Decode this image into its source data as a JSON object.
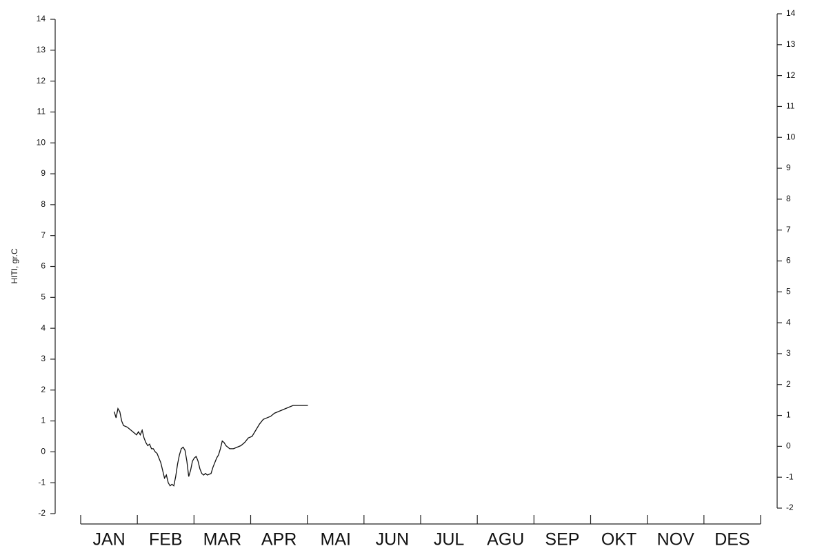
{
  "chart_data": {
    "type": "line",
    "y_label": "HITI, gr.C",
    "categories": [
      "JAN",
      "FEB",
      "MAR",
      "APR",
      "MAI",
      "JUN",
      "JUL",
      "AGU",
      "SEP",
      "OKT",
      "NOV",
      "DES"
    ],
    "xlim": [
      0,
      365
    ],
    "x": [
      18,
      19,
      20,
      21,
      22,
      23,
      25,
      27,
      29,
      30,
      31,
      32,
      33,
      34,
      35,
      36,
      37,
      38,
      39,
      40,
      41,
      42,
      43,
      44,
      45,
      46,
      47,
      48,
      49,
      50,
      51,
      52,
      53,
      54,
      55,
      56,
      57,
      58,
      59,
      60,
      61,
      62,
      63,
      64,
      65,
      66,
      67,
      68,
      70,
      71,
      72,
      73,
      74,
      75,
      76,
      77,
      78,
      79,
      80,
      82,
      84,
      86,
      88,
      90,
      92,
      94,
      96,
      98,
      100,
      102,
      104,
      106,
      108,
      110,
      112,
      114,
      116,
      120,
      122
    ],
    "series": [
      {
        "name": "HITI",
        "color": "#111111",
        "values": [
          1.3,
          1.1,
          1.4,
          1.3,
          1.0,
          0.85,
          0.8,
          0.7,
          0.6,
          0.55,
          0.65,
          0.55,
          0.7,
          0.45,
          0.3,
          0.2,
          0.25,
          0.1,
          0.1,
          0.0,
          -0.05,
          -0.2,
          -0.35,
          -0.6,
          -0.85,
          -0.75,
          -1.0,
          -1.1,
          -1.05,
          -1.1,
          -0.8,
          -0.4,
          -0.1,
          0.1,
          0.15,
          0.05,
          -0.3,
          -0.8,
          -0.6,
          -0.3,
          -0.2,
          -0.15,
          -0.3,
          -0.55,
          -0.7,
          -0.75,
          -0.7,
          -0.75,
          -0.7,
          -0.5,
          -0.35,
          -0.2,
          -0.1,
          0.1,
          0.35,
          0.3,
          0.2,
          0.15,
          0.1,
          0.1,
          0.15,
          0.2,
          0.3,
          0.45,
          0.5,
          0.7,
          0.9,
          1.05,
          1.1,
          1.15,
          1.25,
          1.3,
          1.35,
          1.4,
          1.45,
          1.5,
          1.5,
          1.5,
          1.5
        ]
      }
    ],
    "ylim": [
      -2,
      14
    ],
    "yticks": [
      -2,
      -1,
      0,
      1,
      2,
      3,
      4,
      5,
      6,
      7,
      8,
      9,
      10,
      11,
      12,
      13,
      14
    ],
    "y2lim": [
      -2,
      14
    ],
    "y2ticks": [
      -2,
      -1,
      0,
      1,
      2,
      3,
      4,
      5,
      6,
      7,
      8,
      9,
      10,
      11,
      12,
      13,
      14
    ]
  }
}
